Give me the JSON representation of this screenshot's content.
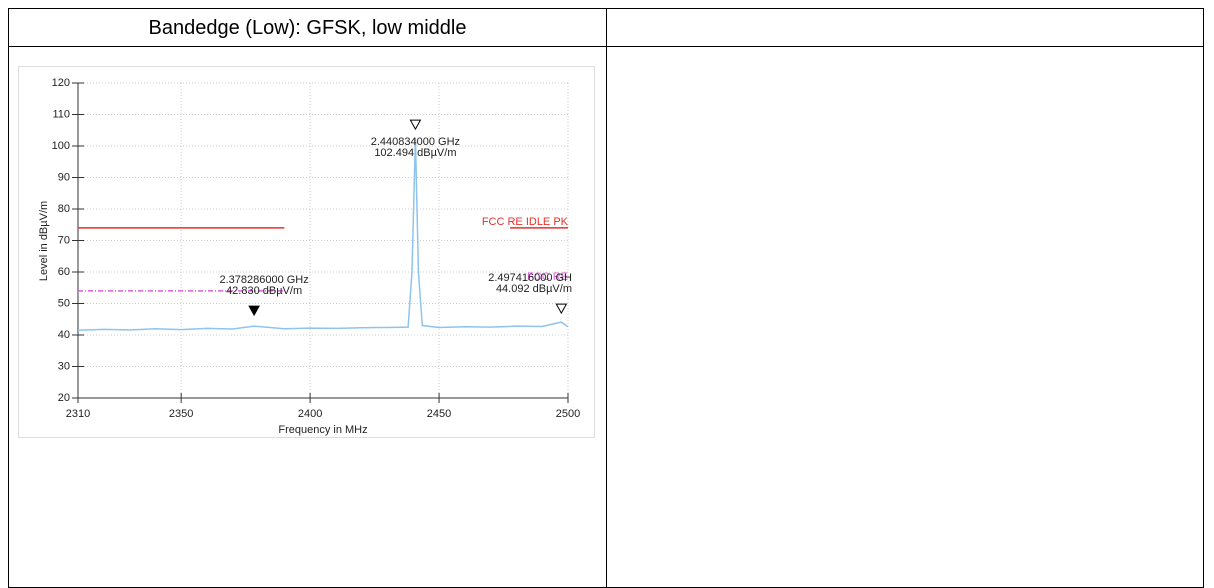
{
  "table": {
    "title": "Bandedge (Low): GFSK, low middle"
  },
  "chart_data": {
    "type": "line",
    "x_label": "Frequency in MHz",
    "y_label": "Level in dBµV/m",
    "xlim": [
      2310,
      2500
    ],
    "xticks": [
      2310,
      2350,
      2400,
      2450,
      2500
    ],
    "ylim": [
      20,
      120
    ],
    "yticks": [
      20,
      30,
      40,
      50,
      60,
      70,
      80,
      90,
      100,
      110,
      120
    ],
    "grid": true,
    "series": [
      {
        "color": "#8ec3ef",
        "dashed": false,
        "x": [
          2310,
          2320,
          2330,
          2340,
          2350,
          2360,
          2370,
          2378.286,
          2390,
          2400,
          2410,
          2420,
          2430,
          2438,
          2439.5,
          2440.834,
          2442,
          2443.5,
          2450,
          2460,
          2470,
          2480,
          2490,
          2497.416,
          2500
        ],
        "values": [
          41.5,
          41.8,
          41.6,
          42,
          41.7,
          42.1,
          41.9,
          42.83,
          42,
          42.2,
          42.1,
          42.3,
          42.4,
          42.5,
          60,
          102.494,
          60,
          43,
          42.4,
          42.6,
          42.5,
          42.8,
          42.7,
          44.092,
          42.6
        ]
      },
      {
        "name": "FCC RE IDLE PK",
        "color": "#e8302a",
        "dashed": false,
        "x": [
          2310,
          2390
        ],
        "values": [
          74,
          74
        ]
      },
      {
        "name": "FCC RE",
        "color": "#e05ce0",
        "dashed": true,
        "x": [
          2310,
          2390
        ],
        "values": [
          54,
          54
        ]
      }
    ],
    "markers": [
      {
        "x": 2440.834,
        "y": 102.494,
        "x_label": "2.440834000 GHz",
        "y_label": "102.494 dBµV/m",
        "filled": false
      },
      {
        "x": 2378.286,
        "y": 42.83,
        "x_label": "2.378286000 GHz",
        "y_label": "42.830 dBµV/m",
        "filled": true
      },
      {
        "x": 2497.416,
        "y": 44.092,
        "x_label": "2.497416000 GH",
        "y_label": "44.092 dBµV/m",
        "filled": false
      }
    ]
  }
}
